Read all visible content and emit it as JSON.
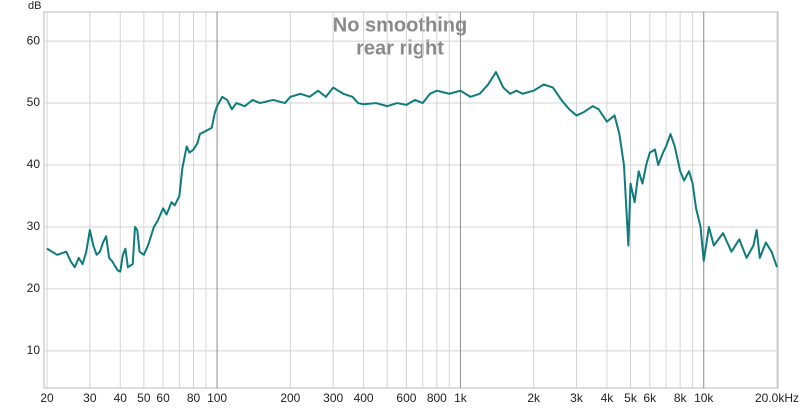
{
  "chart_data": {
    "type": "line",
    "title": "No smoothing",
    "subtitle": "rear right",
    "y_label": "dB",
    "xscale": "log",
    "color": "#0f7c7c",
    "grid": true,
    "xlim": [
      20,
      20000
    ],
    "ylim": [
      4,
      64.7
    ],
    "xticks": [
      20,
      30,
      40,
      50,
      60,
      {
        "value": 70,
        "label": null
      },
      80,
      {
        "value": 90,
        "label": null
      },
      100,
      200,
      300,
      400,
      {
        "value": 500,
        "label": null
      },
      600,
      {
        "value": 700,
        "label": null
      },
      800,
      {
        "value": 900,
        "label": null
      },
      {
        "value": 1000,
        "label": "1k"
      },
      {
        "value": 2000,
        "label": "2k"
      },
      {
        "value": 3000,
        "label": "3k"
      },
      {
        "value": 4000,
        "label": "4k"
      },
      {
        "value": 5000,
        "label": "5k"
      },
      {
        "value": 6000,
        "label": "6k"
      },
      {
        "value": 7000,
        "label": null
      },
      {
        "value": 8000,
        "label": "8k"
      },
      {
        "value": 9000,
        "label": null
      },
      {
        "value": 10000,
        "label": "10k"
      },
      {
        "value": 20000,
        "label": "20.0kHz"
      }
    ],
    "yticks": [
      10,
      20,
      30,
      40,
      50,
      60
    ],
    "x": [
      20,
      22,
      24,
      25,
      26,
      27,
      28,
      29,
      30,
      31,
      32,
      33,
      34,
      35,
      36,
      37,
      39,
      40,
      41,
      42,
      43,
      45,
      46,
      47,
      48,
      50,
      52,
      55,
      57,
      60,
      62,
      65,
      67,
      70,
      72,
      75,
      77,
      80,
      83,
      85,
      90,
      95,
      98,
      100,
      105,
      110,
      115,
      120,
      130,
      140,
      150,
      170,
      190,
      200,
      220,
      240,
      260,
      280,
      300,
      330,
      360,
      380,
      400,
      450,
      500,
      550,
      600,
      650,
      700,
      750,
      800,
      900,
      1000,
      1100,
      1200,
      1300,
      1400,
      1500,
      1600,
      1700,
      1800,
      2000,
      2200,
      2400,
      2600,
      2800,
      3000,
      3200,
      3500,
      3700,
      4000,
      4300,
      4500,
      4700,
      4900,
      5000,
      5200,
      5400,
      5600,
      5800,
      6000,
      6300,
      6500,
      6800,
      7000,
      7300,
      7600,
      8000,
      8300,
      8700,
      9000,
      9300,
      9700,
      10000,
      10500,
      11000,
      12000,
      13000,
      14000,
      15000,
      16000,
      16500,
      17000,
      18000,
      19000,
      20000
    ],
    "values": [
      26.5,
      25.5,
      26,
      24.5,
      23.5,
      25,
      24,
      26,
      29.5,
      27,
      25.5,
      26,
      27.5,
      28.5,
      25,
      24.5,
      23,
      22.8,
      25.5,
      26.5,
      23.5,
      24,
      30,
      29.5,
      26,
      25.5,
      27,
      30,
      31,
      33,
      32,
      34,
      33.5,
      35,
      39.5,
      43,
      42,
      42.5,
      43.5,
      45,
      45.5,
      46,
      48.5,
      49.5,
      51,
      50.5,
      49,
      50,
      49.5,
      50.5,
      50,
      50.5,
      50,
      51,
      51.5,
      51,
      52,
      51,
      52.5,
      51.5,
      51,
      50,
      49.8,
      50,
      49.5,
      50,
      49.7,
      50.5,
      50,
      51.5,
      52,
      51.5,
      52,
      51,
      51.5,
      53,
      55,
      52.5,
      51.5,
      52,
      51.5,
      52,
      53,
      52.5,
      50.5,
      49,
      48,
      48.5,
      49.5,
      49,
      47,
      48,
      45,
      40,
      27,
      37,
      34,
      39,
      37,
      40,
      42,
      42.5,
      40,
      42,
      43,
      45,
      43,
      39,
      37.5,
      39,
      37,
      33,
      30,
      24.5,
      30,
      27,
      29,
      26,
      28,
      25,
      27,
      29.5,
      25,
      27.5,
      26,
      23.5
    ]
  }
}
